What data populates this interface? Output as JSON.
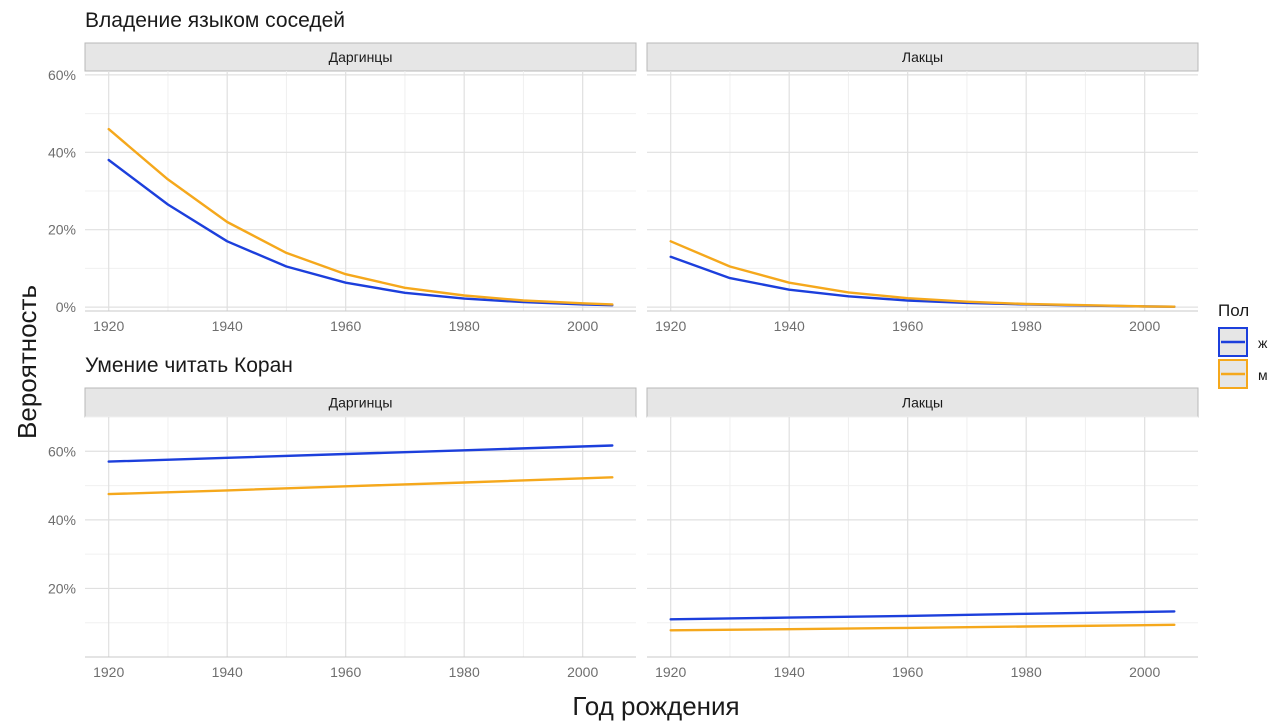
{
  "chart_data": {
    "type": "line",
    "ylabel": "Вероятность",
    "xlabel": "Год рождения",
    "legend": {
      "title": "Пол",
      "placement": "right",
      "items": [
        {
          "label": "ж",
          "color": "#1c3fdc"
        },
        {
          "label": "м",
          "color": "#f5a81c"
        }
      ]
    },
    "x_ticks": [
      "1920",
      "1940",
      "1960",
      "1980",
      "2000"
    ],
    "grid": true,
    "rows": [
      {
        "title": "Владение языком соседей",
        "ylim": [
          -0.01,
          0.61
        ],
        "y_ticks": [
          {
            "value": 0,
            "label": "0%"
          },
          {
            "value": 0.2,
            "label": "20%"
          },
          {
            "value": 0.4,
            "label": "40%"
          },
          {
            "value": 0.6,
            "label": "60%"
          }
        ],
        "panels": [
          {
            "strip": "Даргинцы",
            "series": [
              {
                "name": "ж",
                "x": [
                  1920,
                  1930,
                  1940,
                  1950,
                  1960,
                  1970,
                  1980,
                  1990,
                  2000,
                  2005
                ],
                "y": [
                  0.38,
                  0.265,
                  0.17,
                  0.105,
                  0.063,
                  0.037,
                  0.022,
                  0.013,
                  0.007,
                  0.005
                ]
              },
              {
                "name": "м",
                "x": [
                  1920,
                  1930,
                  1940,
                  1950,
                  1960,
                  1970,
                  1980,
                  1990,
                  2000,
                  2005
                ],
                "y": [
                  0.46,
                  0.33,
                  0.22,
                  0.14,
                  0.085,
                  0.05,
                  0.03,
                  0.017,
                  0.01,
                  0.007
                ]
              }
            ]
          },
          {
            "strip": "Лакцы",
            "series": [
              {
                "name": "ж",
                "x": [
                  1920,
                  1930,
                  1940,
                  1950,
                  1960,
                  1970,
                  1980,
                  1990,
                  2000,
                  2005
                ],
                "y": [
                  0.13,
                  0.075,
                  0.045,
                  0.028,
                  0.017,
                  0.011,
                  0.007,
                  0.004,
                  0.002,
                  0.001
                ]
              },
              {
                "name": "м",
                "x": [
                  1920,
                  1930,
                  1940,
                  1950,
                  1960,
                  1970,
                  1980,
                  1990,
                  2000,
                  2005
                ],
                "y": [
                  0.17,
                  0.105,
                  0.063,
                  0.038,
                  0.023,
                  0.014,
                  0.008,
                  0.005,
                  0.002,
                  0.001
                ]
              }
            ]
          }
        ]
      },
      {
        "title": "Умение читать Коран",
        "ylim": [
          0.0,
          0.7
        ],
        "y_ticks": [
          {
            "value": 0.2,
            "label": "20%"
          },
          {
            "value": 0.4,
            "label": "40%"
          },
          {
            "value": 0.6,
            "label": "60%"
          }
        ],
        "panels": [
          {
            "strip": "Даргинцы",
            "series": [
              {
                "name": "ж",
                "x": [
                  1920,
                  1940,
                  1960,
                  1980,
                  2005
                ],
                "y": [
                  0.57,
                  0.581,
                  0.592,
                  0.603,
                  0.617
                ]
              },
              {
                "name": "м",
                "x": [
                  1920,
                  1940,
                  1960,
                  1980,
                  2005
                ],
                "y": [
                  0.475,
                  0.486,
                  0.498,
                  0.509,
                  0.524
                ]
              }
            ]
          },
          {
            "strip": "Лакцы",
            "series": [
              {
                "name": "ж",
                "x": [
                  1920,
                  1940,
                  1960,
                  1980,
                  2005
                ],
                "y": [
                  0.11,
                  0.115,
                  0.12,
                  0.126,
                  0.133
                ]
              },
              {
                "name": "м",
                "x": [
                  1920,
                  1940,
                  1960,
                  1980,
                  2005
                ],
                "y": [
                  0.078,
                  0.081,
                  0.085,
                  0.089,
                  0.094
                ]
              }
            ]
          }
        ]
      }
    ]
  }
}
